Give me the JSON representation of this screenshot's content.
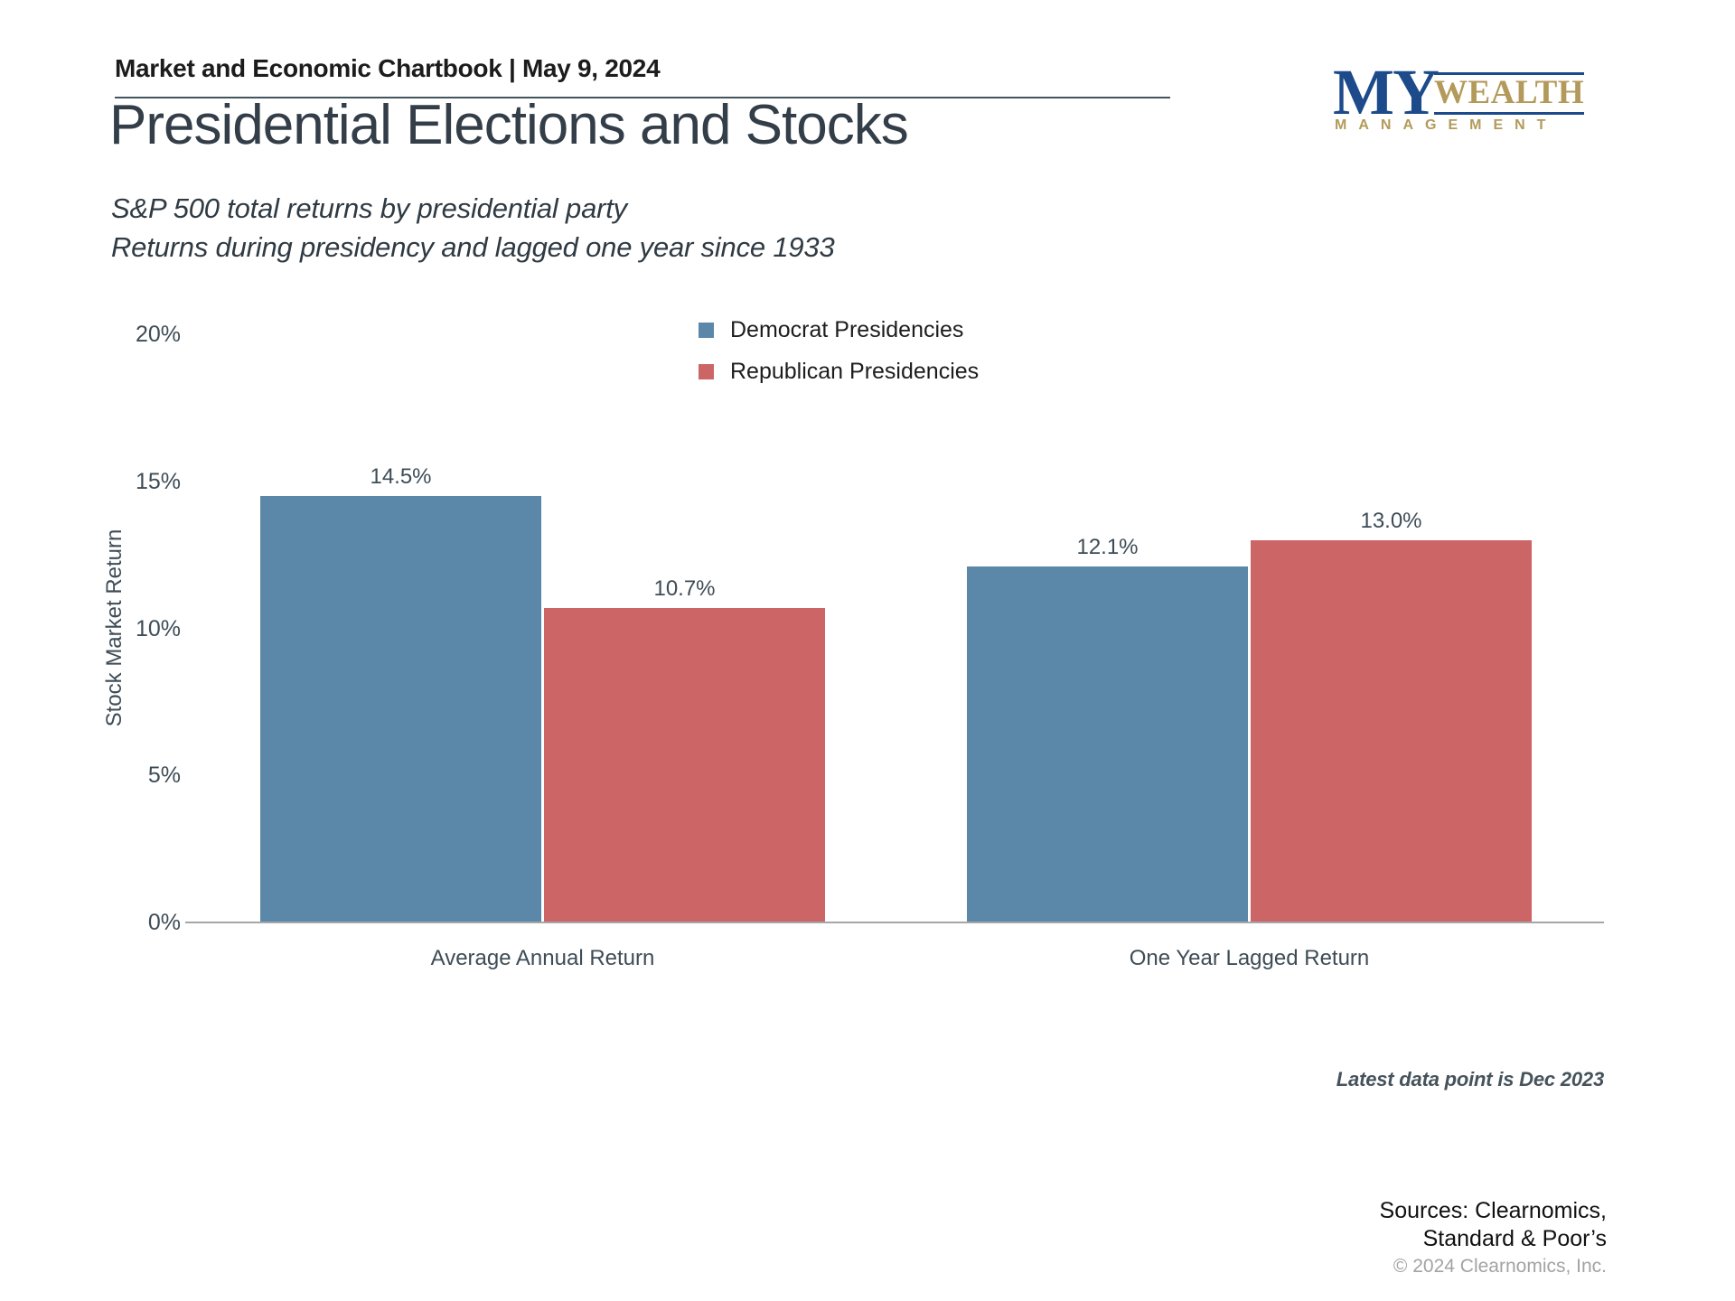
{
  "header": {
    "chartbook_title": "Market and Economic Chartbook | May 9, 2024"
  },
  "logo": {
    "word_my": "MY",
    "word_wealth": "WEALTH",
    "word_management": "MANAGEMENT",
    "navy": "#1c4a8a",
    "gold": "#b39a5a"
  },
  "titles": {
    "main_title": "Presidential Elections and Stocks",
    "subtitle_line1": "S&P 500 total returns by presidential party",
    "subtitle_line2": "Returns during presidency and lagged one year since 1933"
  },
  "chart_data": {
    "type": "bar",
    "title": "Presidential Elections and Stocks",
    "categories": [
      "Average Annual Return",
      "One Year Lagged Return"
    ],
    "series": [
      {
        "name": "Democrat Presidencies",
        "color": "#5b87a9",
        "values": [
          14.5,
          12.1
        ],
        "labels": [
          "14.5%",
          "12.1%"
        ]
      },
      {
        "name": "Republican Presidencies",
        "color": "#cc6566",
        "values": [
          10.7,
          13.0
        ],
        "labels": [
          "10.7%",
          "13.0%"
        ]
      }
    ],
    "xlabel": "",
    "ylabel": "Stock Market Return",
    "ylim": [
      0,
      20
    ],
    "yticks": [
      0,
      5,
      10,
      15,
      20
    ],
    "ytick_labels": [
      "0%",
      "5%",
      "10%",
      "15%",
      "20%"
    ],
    "grid": false,
    "legend_position": "top-center"
  },
  "footnotes": {
    "latest_data": "Latest data point is Dec 2023",
    "sources_line1": "Sources: Clearnomics,",
    "sources_line2": "Standard & Poor’s",
    "copyright": "© 2024 Clearnomics, Inc."
  }
}
